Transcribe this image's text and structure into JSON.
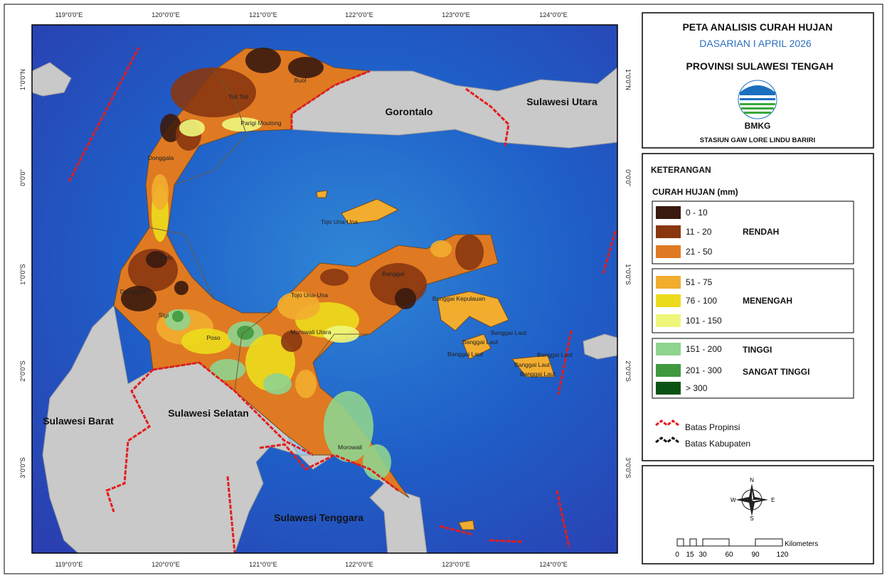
{
  "map": {
    "lon_labels": [
      "119°0'0\"E",
      "120°0'0\"E",
      "121°0'0\"E",
      "122°0'0\"E",
      "123°0'0\"E",
      "124°0'0\"E"
    ],
    "lat_labels": [
      "1°0'0\"N",
      "0°0'0\"",
      "1°0'0\"S",
      "2°0'0\"S",
      "3°0'0\"S"
    ],
    "region_labels": [
      "Gorontalo",
      "Sulawesi Utara",
      "Sulawesi Barat",
      "Sulawesi Selatan",
      "Sulawesi Tenggara"
    ],
    "district_labels": [
      "Toli Toli",
      "Buol",
      "Parigi Moutong",
      "Donggala",
      "Palu",
      "Donggala",
      "Sigi",
      "Poso",
      "Tojo Una-Una",
      "Tojo Una-Una",
      "Banggai",
      "Morowali Utara",
      "Banggai Kepulauan",
      "Banggai Laut",
      "Banggai Laut",
      "Banggai Laut",
      "Banggai Laut",
      "Banggai Laut",
      "Banggai Laut",
      "Morowali"
    ]
  },
  "header": {
    "title": "PETA ANALISIS CURAH HUJAN",
    "period": "DASARIAN I APRIL 2026",
    "province": "PROVINSI SULAWESI TENGAH",
    "logo_text": "BMKG",
    "station": "STASIUN GAW LORE LINDU BARIRI"
  },
  "legend": {
    "title": "KETERANGAN",
    "subtitle": "CURAH HUJAN (mm)",
    "classes": [
      {
        "label": "0 - 10",
        "color": "#3a1a0e"
      },
      {
        "label": "11 - 20",
        "color": "#8a3611"
      },
      {
        "label": "21 - 50",
        "color": "#df7a22"
      },
      {
        "label": "51 - 75",
        "color": "#f2ad2f"
      },
      {
        "label": "76 - 100",
        "color": "#ecdb1c"
      },
      {
        "label": "101 - 150",
        "color": "#eef77c"
      },
      {
        "label": "151 - 200",
        "color": "#8fd48f"
      },
      {
        "label": "201 - 300",
        "color": "#3f9a3f"
      },
      {
        "label": "> 300",
        "color": "#0b5314"
      }
    ],
    "groups": [
      "RENDAH",
      "MENENGAH",
      "TINGGI",
      "SANGAT TINGGI"
    ],
    "boundaries": [
      "Batas Propinsi",
      "Batas Kabupaten"
    ]
  },
  "compass": {
    "n": "N",
    "s": "S",
    "e": "E",
    "w": "W"
  },
  "scale": {
    "ticks": [
      "0",
      "15",
      "30",
      "60",
      "90",
      "120"
    ],
    "unit": "Kilometers"
  }
}
